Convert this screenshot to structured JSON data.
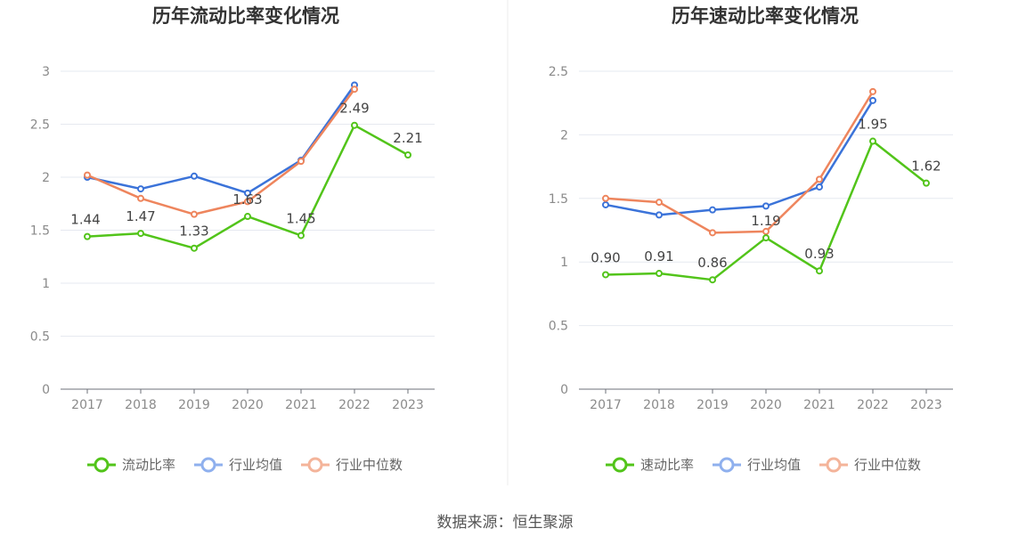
{
  "source": "数据来源：恒生聚源",
  "colors": {
    "primary": "#52c41a",
    "avg": "#3b73d9",
    "median": "#ee855d"
  },
  "chart_data": [
    {
      "type": "line",
      "title": "历年流动比率变化情况",
      "categories": [
        "2017",
        "2018",
        "2019",
        "2020",
        "2021",
        "2022",
        "2023"
      ],
      "ylim": [
        0,
        3
      ],
      "yticks": [
        "0",
        "0.5",
        "1",
        "1.5",
        "2",
        "2.5",
        "3"
      ],
      "ytick_values": [
        0,
        0.5,
        1,
        1.5,
        2,
        2.5,
        3
      ],
      "grid": true,
      "legend_position": "bottom",
      "series": [
        {
          "name": "流动比率",
          "color": "#52c41a",
          "values": [
            1.44,
            1.47,
            1.33,
            1.63,
            1.45,
            2.49,
            2.21
          ],
          "labels": [
            "1.44",
            "1.47",
            "1.33",
            "1.63",
            "1.45",
            "2.49",
            "2.21"
          ]
        },
        {
          "name": "行业均值",
          "color": "#3b73d9",
          "values": [
            2.0,
            1.89,
            2.01,
            1.85,
            2.16,
            2.87,
            null
          ]
        },
        {
          "name": "行业中位数",
          "color": "#ee855d",
          "values": [
            2.02,
            1.8,
            1.65,
            1.77,
            2.15,
            2.83,
            null
          ]
        }
      ]
    },
    {
      "type": "line",
      "title": "历年速动比率变化情况",
      "categories": [
        "2017",
        "2018",
        "2019",
        "2020",
        "2021",
        "2022",
        "2023"
      ],
      "ylim": [
        0,
        2.5
      ],
      "yticks": [
        "0",
        "0.5",
        "1",
        "1.5",
        "2",
        "2.5"
      ],
      "ytick_values": [
        0,
        0.5,
        1,
        1.5,
        2,
        2.5
      ],
      "grid": true,
      "legend_position": "bottom",
      "series": [
        {
          "name": "速动比率",
          "color": "#52c41a",
          "values": [
            0.9,
            0.91,
            0.86,
            1.19,
            0.93,
            1.95,
            1.62
          ],
          "labels": [
            "0.90",
            "0.91",
            "0.86",
            "1.19",
            "0.93",
            "1.95",
            "1.62"
          ]
        },
        {
          "name": "行业均值",
          "color": "#3b73d9",
          "values": [
            1.45,
            1.37,
            1.41,
            1.44,
            1.59,
            2.27,
            null
          ]
        },
        {
          "name": "行业中位数",
          "color": "#ee855d",
          "values": [
            1.5,
            1.47,
            1.23,
            1.24,
            1.65,
            2.34,
            null
          ]
        }
      ]
    }
  ]
}
